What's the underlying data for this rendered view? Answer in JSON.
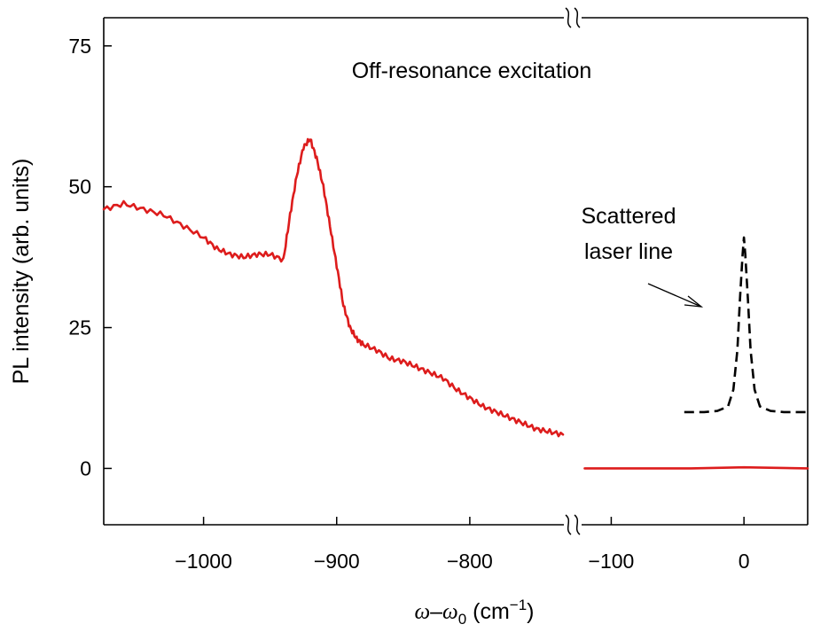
{
  "chart_data": {
    "type": "line",
    "title": "Off-resonance excitation",
    "ylabel": "PL intensity (arb. units)",
    "xlabel": {
      "omega": "ω",
      "dash": "–",
      "omega0": "ω",
      "sub0": "0",
      "units_open": " (cm",
      "sup": "−1",
      "units_close": ")"
    },
    "ylim": [
      -10,
      80
    ],
    "yticks": [
      0,
      25,
      50,
      75
    ],
    "ytick_labels": [
      "0",
      "25",
      "50",
      "75"
    ],
    "x_left_panel": {
      "xlim": [
        -1075,
        -728
      ],
      "xticks": [
        -1000,
        -900,
        -800
      ],
      "xtick_labels": [
        "−1000",
        "−900",
        "−800"
      ]
    },
    "x_right_panel": {
      "xlim": [
        -125,
        48
      ],
      "xticks": [
        -100,
        0
      ],
      "xtick_labels": [
        "−100",
        "0"
      ]
    },
    "annotation": {
      "line1": "Scattered",
      "line2": "laser line"
    },
    "colors": {
      "pl": "#dd1c1c",
      "laser": "#000000",
      "axis": "#000000"
    },
    "series": [
      {
        "name": "PL off-resonance (left)",
        "panel": "left",
        "style": "solid",
        "x": [
          -1075,
          -1060,
          -1045,
          -1030,
          -1015,
          -1000,
          -990,
          -980,
          -970,
          -960,
          -950,
          -940,
          -935,
          -930,
          -925,
          -920,
          -915,
          -910,
          -905,
          -900,
          -895,
          -890,
          -885,
          -880,
          -870,
          -860,
          -850,
          -840,
          -830,
          -820,
          -810,
          -800,
          -790,
          -780,
          -770,
          -760,
          -750,
          -740,
          -730
        ],
        "y": [
          46,
          47,
          46,
          45,
          43,
          41,
          39,
          38,
          37.5,
          38,
          38,
          37,
          45,
          52,
          57,
          58.5,
          55,
          50,
          43,
          36,
          29,
          25,
          23,
          22,
          21,
          19.5,
          19,
          18,
          17,
          16,
          14,
          12.5,
          11,
          10,
          9,
          8,
          7,
          6.5,
          6
        ]
      },
      {
        "name": "PL off-resonance (right)",
        "panel": "right",
        "style": "solid",
        "x": [
          -120,
          -80,
          -40,
          0,
          48
        ],
        "y": [
          0,
          0,
          0,
          0.2,
          0
        ]
      },
      {
        "name": "Scattered laser line",
        "panel": "right",
        "style": "dashed",
        "x": [
          -45,
          -30,
          -20,
          -12,
          -8,
          -5,
          -3,
          -1,
          0,
          1,
          3,
          5,
          8,
          12,
          20,
          30,
          48
        ],
        "y": [
          10,
          10,
          10.2,
          11,
          14,
          21,
          30,
          38,
          41,
          38,
          30,
          21,
          14,
          11,
          10.2,
          10,
          10
        ]
      }
    ]
  }
}
